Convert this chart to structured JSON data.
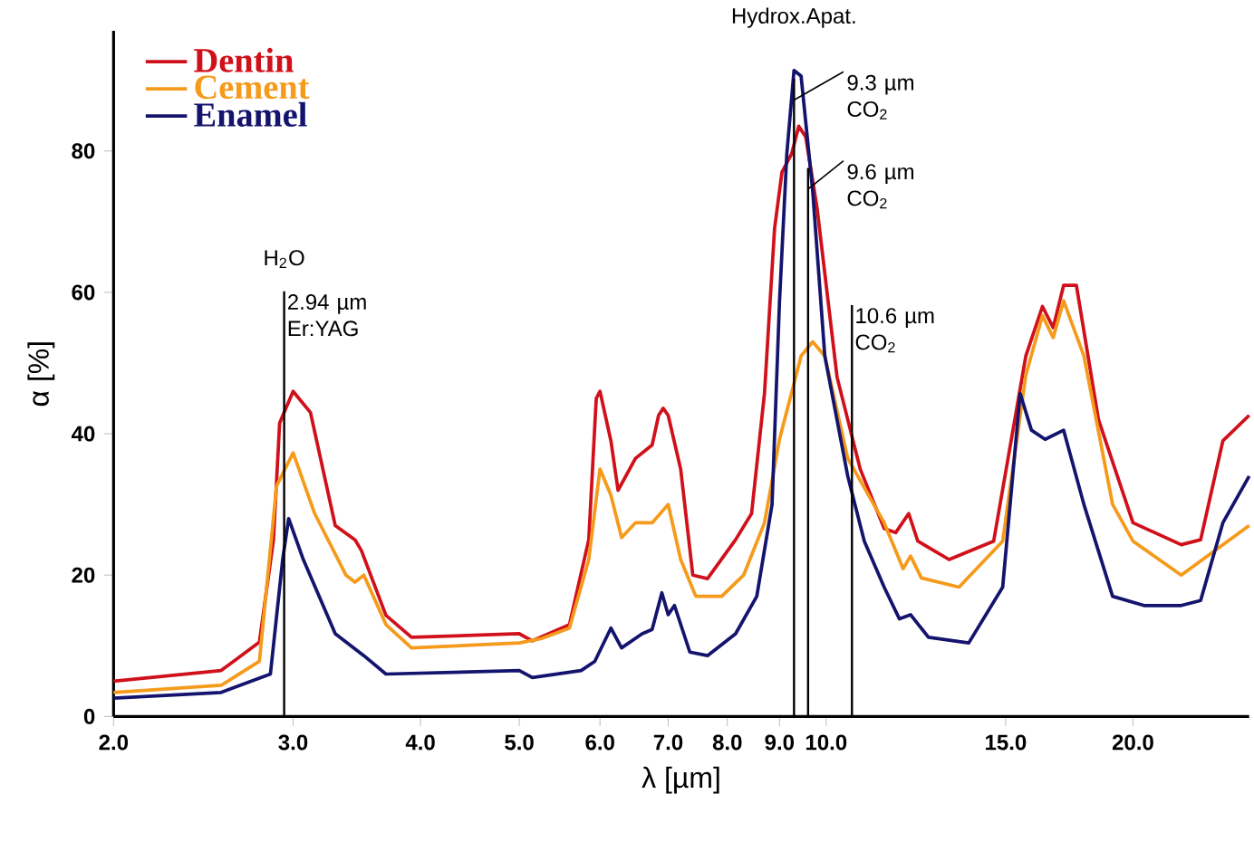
{
  "chart_data": {
    "type": "line",
    "xlabel": "λ [µm]",
    "ylabel": "α [%]",
    "log": "x",
    "xlim": [
      2.0,
      26
    ],
    "ylim": [
      0,
      97
    ],
    "xticks": [
      {
        "value": 2,
        "label": "2.0"
      },
      {
        "value": 3,
        "label": "3.0"
      },
      {
        "value": 4,
        "label": "4.0"
      },
      {
        "value": 5,
        "label": "5.0"
      },
      {
        "value": 6,
        "label": "6.0"
      },
      {
        "value": 7,
        "label": "7.0"
      },
      {
        "value": 8,
        "label": "8.0"
      },
      {
        "value": 9,
        "label": "9.0"
      },
      {
        "value": 10,
        "label": "10.0"
      },
      {
        "value": 15,
        "label": "15.0"
      },
      {
        "value": 20,
        "label": "20.0"
      }
    ],
    "yticks": [
      0,
      20,
      40,
      60,
      80
    ],
    "legend": "top left",
    "grid": false,
    "marker": "none",
    "line_style": "solid",
    "series": [
      {
        "name": "Dentin",
        "color": "#d0101a",
        "x": [
          2.0,
          2.55,
          2.78,
          2.87,
          2.91,
          3.0,
          3.12,
          3.3,
          3.45,
          3.5,
          3.7,
          3.92,
          5.0,
          5.15,
          5.6,
          5.85,
          5.95,
          6.0,
          6.15,
          6.25,
          6.4,
          6.5,
          6.75,
          6.85,
          6.92,
          7.0,
          7.2,
          7.4,
          7.65,
          8.15,
          8.45,
          8.7,
          8.9,
          9.05,
          9.25,
          9.4,
          9.55,
          9.8,
          10.25,
          10.8,
          11.4,
          11.7,
          12.05,
          12.3,
          13.2,
          14.6,
          15.7,
          16.3,
          16.7,
          17.1,
          17.6,
          18.5,
          20.0,
          22.3,
          23.3,
          24.5,
          26
        ],
        "values": [
          5.0,
          6.5,
          10.5,
          25,
          41.5,
          46,
          43,
          27,
          25,
          23.5,
          14.3,
          11.2,
          11.7,
          10.7,
          13,
          25,
          45,
          46,
          39,
          32,
          34.7,
          36.5,
          38.4,
          42.6,
          43.6,
          42.6,
          35,
          20,
          19.5,
          25,
          28.7,
          45.7,
          69,
          77,
          79.6,
          83.5,
          82,
          71.8,
          48,
          35,
          26.6,
          26,
          28.7,
          24.8,
          22.2,
          24.8,
          51,
          58,
          55,
          61,
          61,
          42,
          27.4,
          24.3,
          25,
          39,
          42.6
        ]
      },
      {
        "name": "Cement",
        "color": "#f59a1b",
        "x": [
          2.0,
          2.55,
          2.78,
          2.89,
          3.0,
          3.15,
          3.38,
          3.45,
          3.52,
          3.7,
          3.92,
          5.0,
          5.25,
          5.6,
          5.85,
          6.0,
          6.15,
          6.3,
          6.5,
          6.75,
          7.0,
          7.2,
          7.45,
          7.9,
          8.3,
          8.7,
          9.0,
          9.45,
          9.7,
          9.97,
          10.5,
          11.4,
          11.9,
          12.1,
          12.4,
          13.5,
          14.9,
          15.7,
          16.3,
          16.7,
          17.1,
          17.9,
          19.1,
          20.0,
          22.3,
          26
        ],
        "values": [
          3.4,
          4.4,
          7.8,
          32.6,
          37.3,
          28.7,
          20,
          19,
          20,
          13,
          9.7,
          10.4,
          11,
          12.5,
          22.2,
          35,
          31.3,
          25.3,
          27.4,
          27.4,
          30,
          22.2,
          17,
          17,
          20,
          27.4,
          39.2,
          51,
          53,
          51,
          36.5,
          27.4,
          20.9,
          22.7,
          19.6,
          18.3,
          24.8,
          48.3,
          56.7,
          53.6,
          58.8,
          51,
          30,
          24.8,
          20,
          27
        ]
      },
      {
        "name": "Enamel",
        "color": "#14146e",
        "x": [
          2.0,
          2.55,
          2.85,
          2.93,
          2.97,
          3.07,
          3.3,
          3.52,
          3.7,
          5.0,
          5.15,
          5.75,
          5.93,
          6.15,
          6.3,
          6.6,
          6.75,
          6.9,
          7.0,
          7.1,
          7.35,
          7.65,
          8.15,
          8.55,
          8.85,
          9.0,
          9.15,
          9.3,
          9.45,
          9.7,
          9.97,
          10.5,
          10.9,
          11.4,
          11.8,
          12.1,
          12.6,
          13.8,
          14.9,
          15.5,
          15.9,
          16.4,
          17.1,
          17.9,
          19.1,
          20.5,
          22.3,
          23.3,
          24.5,
          26
        ],
        "values": [
          2.6,
          3.4,
          6,
          22.2,
          28,
          22.2,
          11.7,
          8.6,
          6,
          6.5,
          5.5,
          6.5,
          7.8,
          12.5,
          9.7,
          11.7,
          12.3,
          17.5,
          14.4,
          15.7,
          9.1,
          8.6,
          11.7,
          17,
          30,
          58.7,
          79.6,
          91.4,
          90.6,
          74.4,
          51,
          34,
          24.8,
          18.3,
          13.8,
          14.4,
          11.2,
          10.4,
          18.3,
          45.7,
          40.5,
          39.2,
          40.5,
          30,
          17,
          15.7,
          15.7,
          16.4,
          27.4,
          34
        ]
      }
    ],
    "ref_lines": [
      {
        "axis": "x",
        "value": 2.94,
        "label": "2.94 µm Er:YAG"
      },
      {
        "axis": "x",
        "value": 9.3,
        "label": "9.3 µm CO$_{2}$"
      },
      {
        "axis": "x",
        "value": 9.6,
        "label": "9.6 µm CO$_{2}$"
      },
      {
        "axis": "x",
        "value": 10.6,
        "label": "10.6 µm CO$_{2}$"
      }
    ],
    "annotations": [
      "H$_{2}$O",
      "Hydrox.Apat."
    ]
  }
}
